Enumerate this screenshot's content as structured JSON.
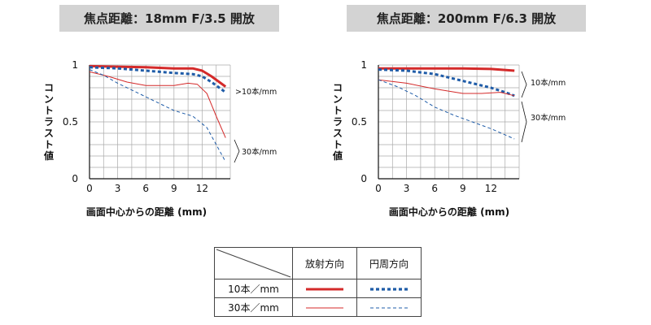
{
  "colors": {
    "radial": "#d42a2a",
    "circumferential": "#1f5ca8",
    "grid": "#aaaaaa",
    "title_bg": "#d3d3d3"
  },
  "legend": {
    "headers": [
      "放射方向",
      "円周方向"
    ],
    "rows": [
      "10本／mm",
      "30本／mm"
    ]
  },
  "chart_data": [
    {
      "type": "line",
      "title": "焦点距離：18mm  F/3.5 開放",
      "xlabel": "画面中心からの距離 (mm)",
      "ylabel": "コントラスト値",
      "xlim": [
        0,
        15
      ],
      "ylim": [
        0,
        1
      ],
      "xticks": [
        "0",
        "3",
        "6",
        "9",
        "12"
      ],
      "yticks": [
        "0",
        "0.5",
        "1"
      ],
      "grid": true,
      "annotations": [
        ">10本/mm",
        "30本/mm"
      ],
      "series": [
        {
          "freq": "10本/mm",
          "direction": "放射方向",
          "x": [
            0,
            3,
            6,
            9,
            11,
            12,
            13,
            14.5
          ],
          "y": [
            0.99,
            0.985,
            0.98,
            0.97,
            0.97,
            0.95,
            0.9,
            0.81
          ]
        },
        {
          "freq": "10本/mm",
          "direction": "円周方向",
          "x": [
            0,
            3,
            6,
            9,
            11,
            12,
            13,
            14.5
          ],
          "y": [
            0.98,
            0.97,
            0.95,
            0.93,
            0.92,
            0.9,
            0.85,
            0.76
          ]
        },
        {
          "freq": "30本/mm",
          "direction": "放射方向",
          "x": [
            0,
            2,
            4,
            6,
            9,
            10.5,
            11.5,
            12.5,
            13.5,
            14.5
          ],
          "y": [
            0.94,
            0.9,
            0.85,
            0.82,
            0.82,
            0.84,
            0.83,
            0.75,
            0.55,
            0.36
          ]
        },
        {
          "freq": "30本/mm",
          "direction": "円周方向",
          "x": [
            0,
            1.5,
            3,
            5,
            7,
            9,
            11,
            12.5,
            13.5,
            14.5
          ],
          "y": [
            0.96,
            0.91,
            0.84,
            0.76,
            0.68,
            0.6,
            0.55,
            0.45,
            0.3,
            0.15
          ]
        }
      ]
    },
    {
      "type": "line",
      "title": "焦点距離：200mm  F/6.3 開放",
      "xlabel": "画面中心からの距離 (mm)",
      "ylabel": "コントラスト値",
      "xlim": [
        0,
        15
      ],
      "ylim": [
        0,
        1
      ],
      "xticks": [
        "0",
        "3",
        "6",
        "9",
        "12"
      ],
      "yticks": [
        "0",
        "0.5",
        "1"
      ],
      "grid": true,
      "annotations": [
        "10本/mm",
        "30本/mm"
      ],
      "series": [
        {
          "freq": "10本/mm",
          "direction": "放射方向",
          "x": [
            0,
            3,
            6,
            9,
            12,
            14.5
          ],
          "y": [
            0.97,
            0.97,
            0.97,
            0.97,
            0.965,
            0.95
          ]
        },
        {
          "freq": "10本/mm",
          "direction": "円周方向",
          "x": [
            0,
            3,
            6,
            8,
            10,
            12,
            13.5,
            14.5
          ],
          "y": [
            0.96,
            0.95,
            0.92,
            0.88,
            0.84,
            0.8,
            0.76,
            0.73
          ]
        },
        {
          "freq": "30本/mm",
          "direction": "放射方向",
          "x": [
            0,
            3,
            6,
            9,
            11,
            13,
            14.5
          ],
          "y": [
            0.87,
            0.84,
            0.79,
            0.75,
            0.75,
            0.76,
            0.73
          ]
        },
        {
          "freq": "30本/mm",
          "direction": "円周方向",
          "x": [
            0,
            2,
            4,
            6,
            8,
            10,
            12,
            14.5
          ],
          "y": [
            0.87,
            0.81,
            0.73,
            0.63,
            0.56,
            0.5,
            0.44,
            0.35
          ]
        }
      ]
    }
  ]
}
